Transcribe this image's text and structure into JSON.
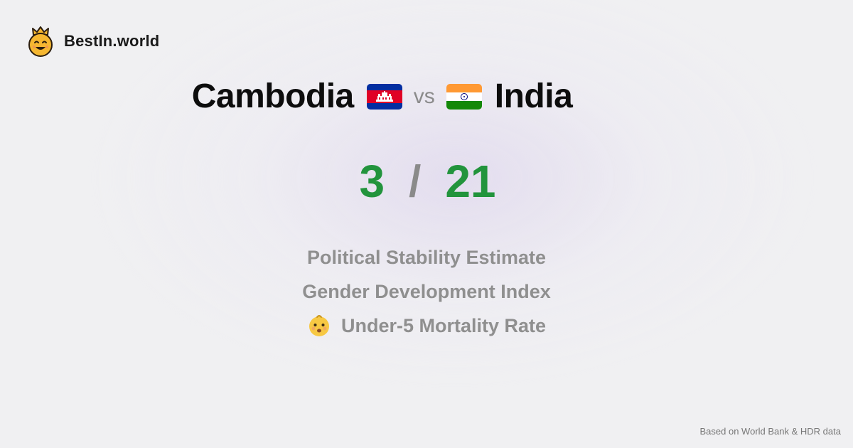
{
  "brand": {
    "name": "BestIn.world",
    "logo_icon": "crown-smiley-icon"
  },
  "comparison": {
    "country_a": {
      "name": "Cambodia",
      "flag_icon": "cambodia-flag-icon"
    },
    "vs_label": "vs",
    "country_b": {
      "name": "India",
      "flag_icon": "india-flag-icon"
    }
  },
  "scores": {
    "a": "3",
    "separator": "/",
    "b": "21"
  },
  "metrics": [
    {
      "label": "Political Stability Estimate"
    },
    {
      "label": "Gender Development Index"
    },
    {
      "label": "Under-5 Mortality Rate",
      "icon": "baby-face-icon"
    }
  ],
  "footer": {
    "source": "Based on World Bank & HDR data"
  },
  "colors": {
    "score_green": "#22943c",
    "muted_gray": "#8f8f8f",
    "background": "#f0f0f2"
  }
}
